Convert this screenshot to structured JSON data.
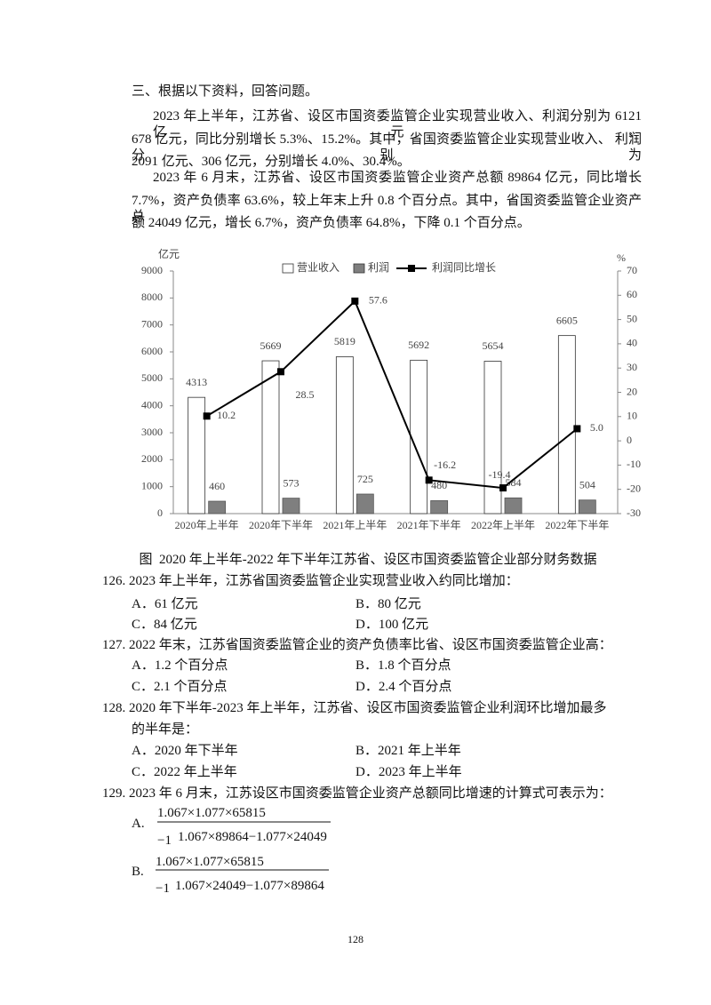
{
  "heading": "三、根据以下资料，回答问题。",
  "paragraphs": [
    [
      "2023 年上半年，江苏省、设区市国资委监管企业实现营业收入、利润分别为 6121 亿元、",
      "678 亿元，同比分别增长 5.3%、15.2%。其中，省国资委监管企业实现营业收入、  利润分别为",
      "2091 亿元、306 亿元，分别增长 4.0%、30.4%。"
    ],
    [
      "2023 年 6 月末，江苏省、设区市国资委监管企业资产总额 89864 亿元，同比增长",
      "7.7%，资产负债率 63.6%，较上年末上升 0.8 个百分点。其中，省国资委监管企业资产  总",
      "额 24049 亿元，增长 6.7%，资产负债率 64.8%，下降 0.1 个百分点。"
    ]
  ],
  "chart_data": {
    "type": "bar_line",
    "y_label": "亿元",
    "y2_label": "%",
    "caption": "图  2020 年上半年-2022 年下半年江苏省、设区市国资委监管企业部分财务数据",
    "categories": [
      "2020年上半年",
      "2020年下半年",
      "2021年上半年",
      "2021年下半年",
      "2022年上半年",
      "2022年下半年"
    ],
    "series": [
      {
        "name": "营业收入",
        "color": "#ffffff",
        "values": [
          4313,
          5669,
          5819,
          5692,
          5654,
          6605
        ]
      },
      {
        "name": "利润",
        "color": "#7f7f7f",
        "values": [
          460,
          573,
          725,
          480,
          584,
          504
        ]
      },
      {
        "name": "利润同比增长",
        "color": "#000000",
        "axis": "y2",
        "values": [
          10.2,
          28.5,
          57.6,
          -16.2,
          -19.4,
          5.0
        ],
        "value_labels": [
          "10.2",
          "28.5",
          "57.6",
          "-16.2",
          "-19.4",
          "5.0"
        ]
      }
    ],
    "ylim": [
      0,
      9000
    ],
    "yticks": [
      0,
      1000,
      2000,
      3000,
      4000,
      5000,
      6000,
      7000,
      8000,
      9000
    ],
    "y2lim": [
      -30,
      70
    ],
    "y2ticks": [
      -30,
      -20,
      -10,
      0,
      10,
      20,
      30,
      40,
      50,
      60,
      70
    ],
    "legend": "top"
  },
  "questions": [
    {
      "stem": [
        "126. 2023 年上半年，江苏省国资委监管企业实现营业收入约同比增加："
      ],
      "options": [
        "A．61 亿元",
        "B．80 亿元",
        "C．84 亿元",
        "D．100 亿元"
      ]
    },
    {
      "stem": [
        "127. 2022 年末，江苏省国资委监管企业的资产负债率比省、设区市国资委监管企业高："
      ],
      "options": [
        "A．1.2 个百分点",
        "B．1.8 个百分点",
        "C．2.1 个百分点",
        "D．2.4 个百分点"
      ]
    },
    {
      "stem": [
        "128. 2020 年下半年-2023 年上半年，江苏省、设区市国资委监管企业利润环比增加最多",
        "的半年是："
      ],
      "options": [
        "A．2020 年下半年",
        "B．2021 年上半年",
        "C．2022 年上半年",
        "D．2023 年上半年"
      ]
    },
    {
      "stem": [
        "129. 2023 年 6 月末，江苏设区市国资委监管企业资产总额同比增速的计算式可表示为："
      ],
      "formulas": [
        {
          "label": "A.",
          "numerator": "1.067×1.077×65815",
          "denominator": "1.067×89864−1.077×24049",
          "minus": "−1"
        },
        {
          "label": "B.",
          "numerator": "1.067×1.077×65815",
          "denominator": "1.067×24049−1.077×89864",
          "minus": "−1"
        }
      ]
    }
  ],
  "page_number": "128"
}
